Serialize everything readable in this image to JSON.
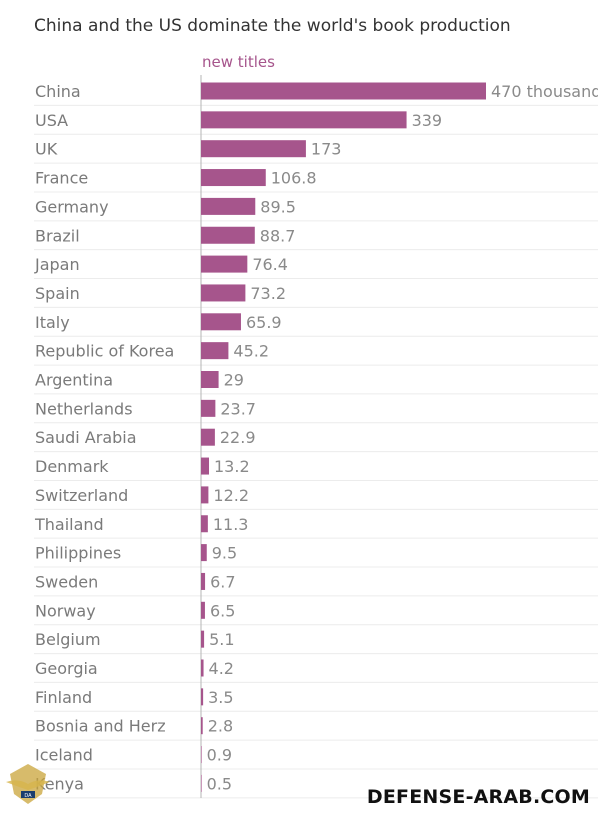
{
  "title": "China and the US dominate the world's book production",
  "watermark": "DEFENSE-ARAB.COM",
  "logo_text": "ARAB DEFENSE FORUM",
  "chart_data": {
    "type": "bar",
    "orientation": "horizontal",
    "title": "China and the US dominate the world's book production",
    "series": [
      {
        "name": "new titles",
        "color": "#a6558c",
        "values": [
          470,
          339,
          173,
          106.8,
          89.5,
          88.7,
          76.4,
          73.2,
          65.9,
          45.2,
          29,
          23.7,
          22.9,
          13.2,
          12.2,
          11.3,
          9.5,
          6.7,
          6.5,
          5.1,
          4.2,
          3.5,
          2.8,
          0.9,
          0.5
        ]
      }
    ],
    "categories": [
      "China",
      "USA",
      "UK",
      "France",
      "Germany",
      "Brazil",
      "Japan",
      "Spain",
      "Italy",
      "Republic of Korea",
      "Argentina",
      "Netherlands",
      "Saudi Arabia",
      "Denmark",
      "Switzerland",
      "Thailand",
      "Philippines",
      "Sweden",
      "Norway",
      "Belgium",
      "Georgia",
      "Finland",
      "Bosnia and Herz",
      "Iceland",
      "Kenya"
    ],
    "value_labels": [
      "470 thousand",
      "339",
      "173",
      "106.8",
      "89.5",
      "88.7",
      "76.4",
      "73.2",
      "65.9",
      "45.2",
      "29",
      "23.7",
      "22.9",
      "13.2",
      "12.2",
      "11.3",
      "9.5",
      "6.7",
      "6.5",
      "5.1",
      "4.2",
      "3.5",
      "2.8",
      "0.9",
      "0.5"
    ],
    "xlim": [
      0,
      470
    ],
    "grid": true
  }
}
